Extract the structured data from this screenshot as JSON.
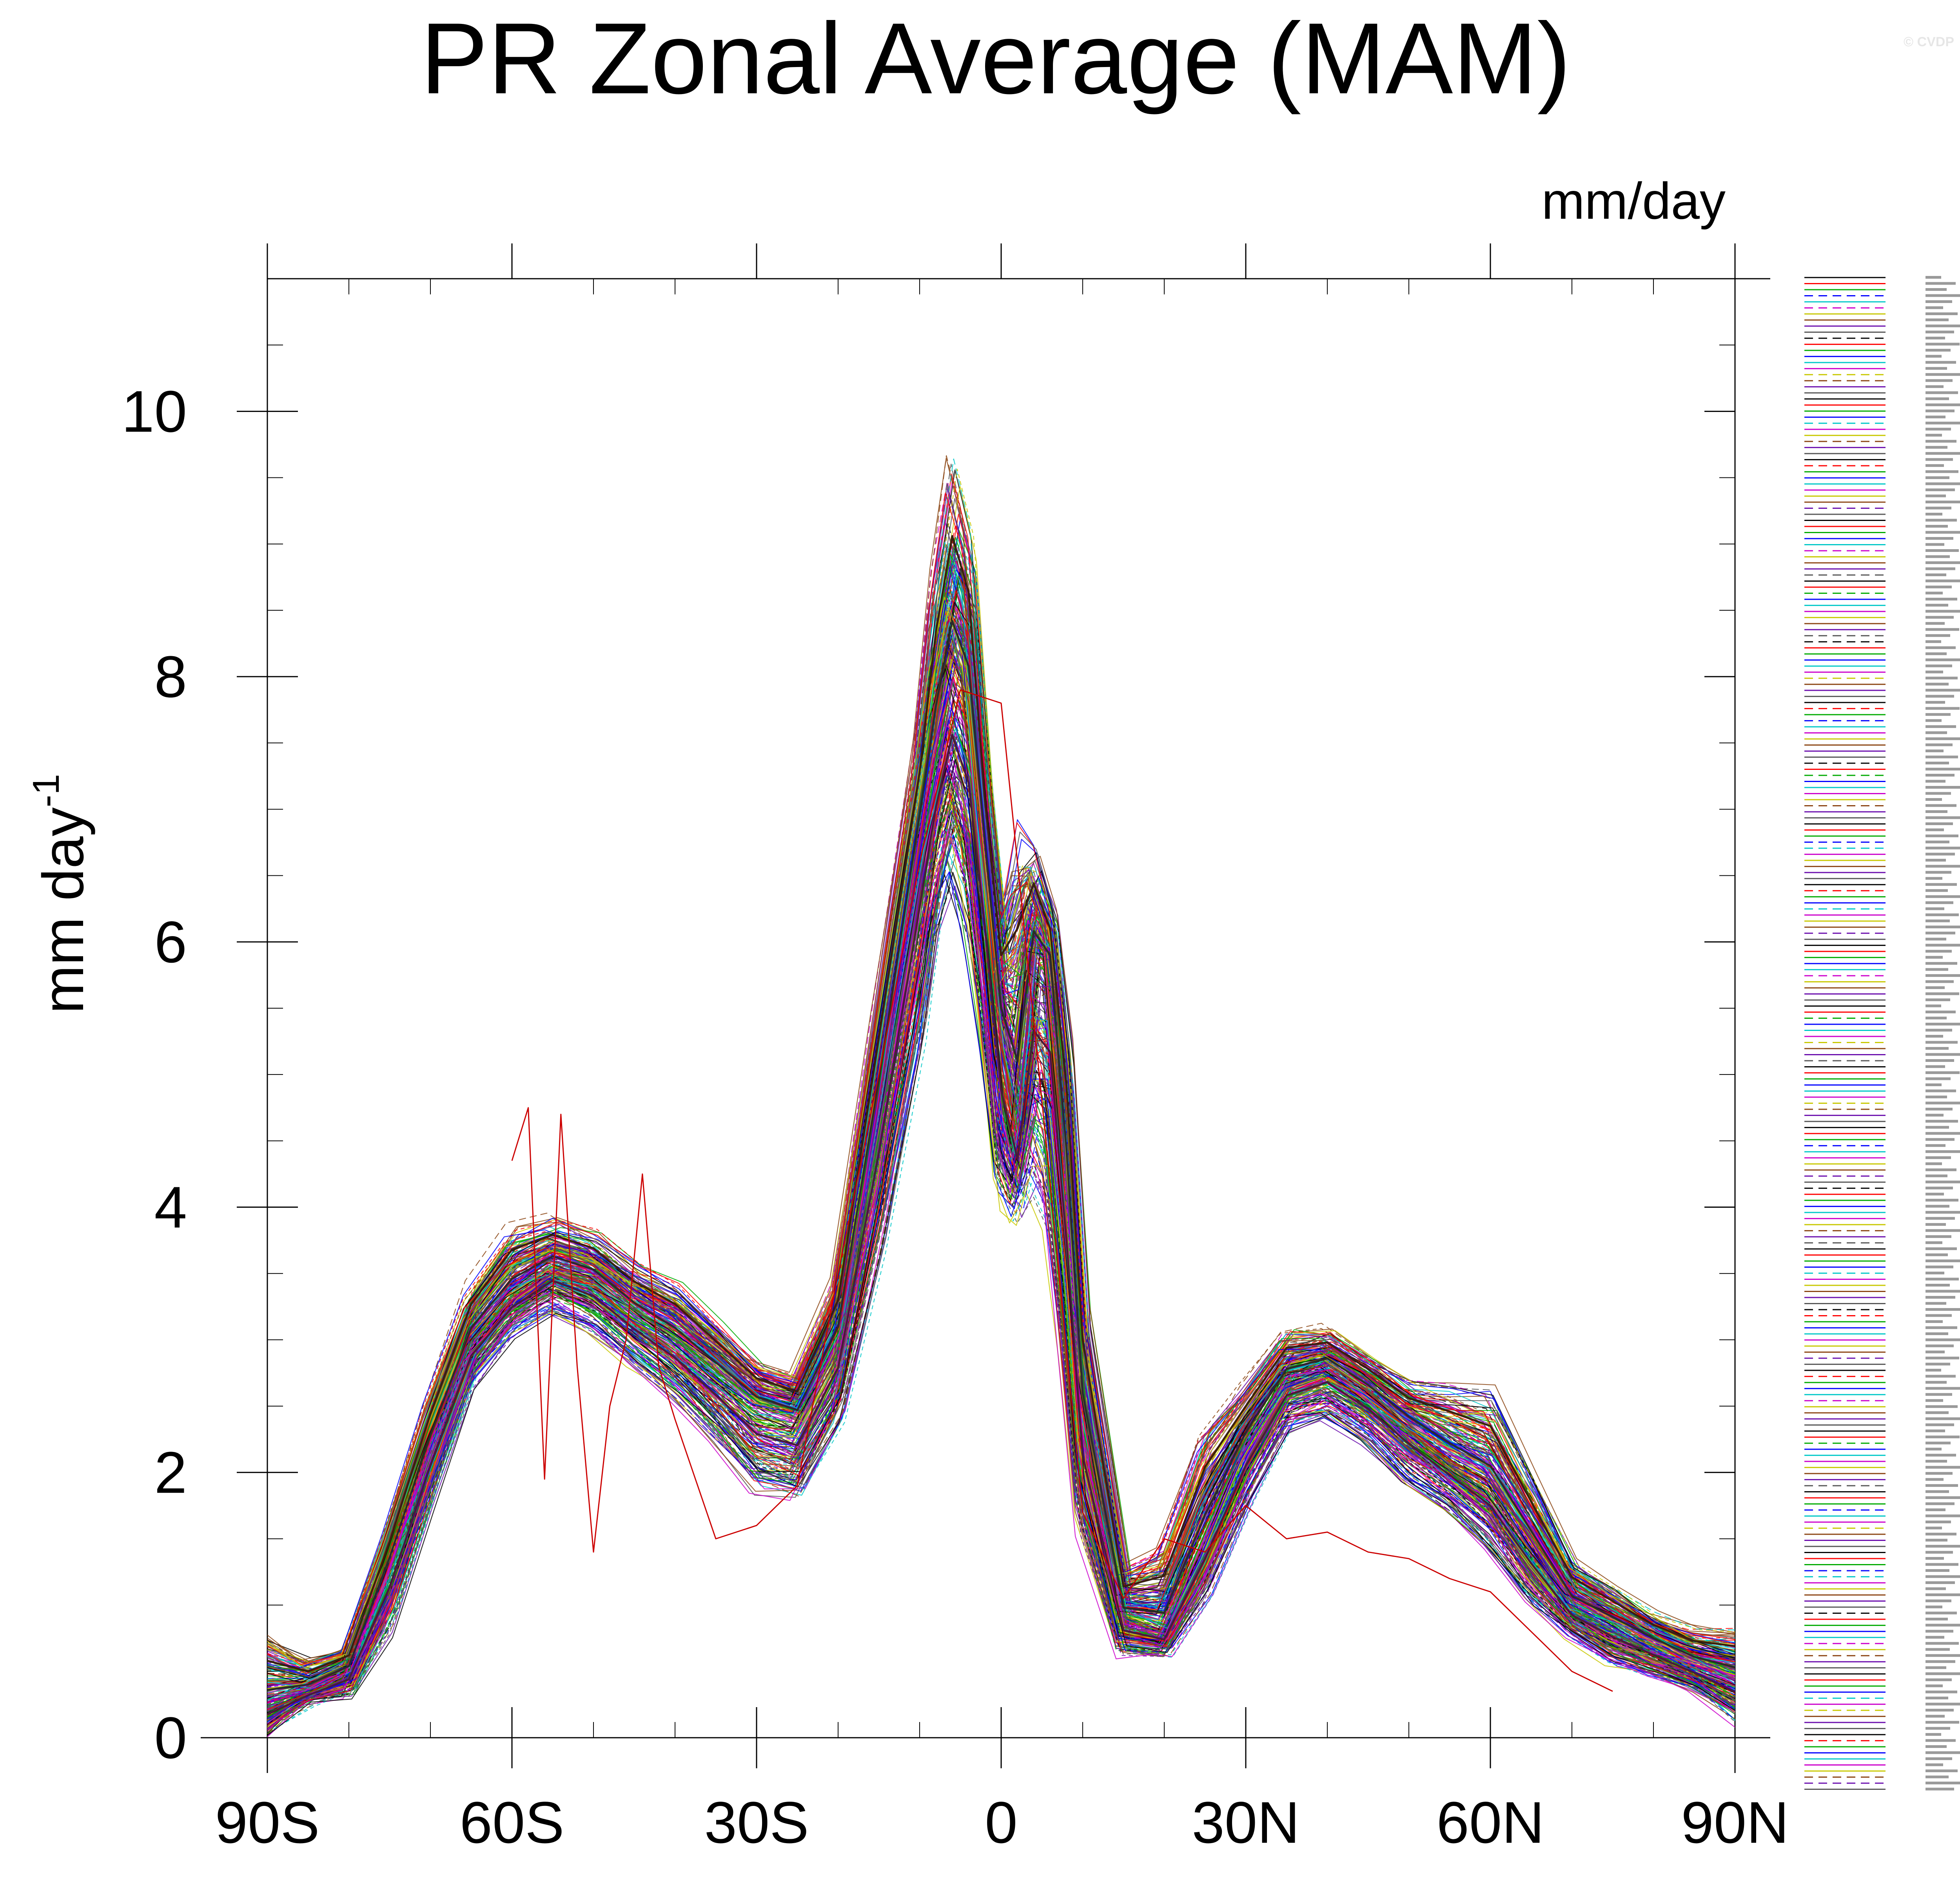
{
  "watermark": "© CVDP",
  "chart_data": {
    "type": "line",
    "title": "PR Zonal Average (MAM)",
    "units_label": "mm/day",
    "ylabel": "mm day",
    "ylabel_superscript": "-1",
    "xlim": [
      -90,
      90
    ],
    "ylim": [
      0,
      11
    ],
    "x_ticks": [
      {
        "value": -90,
        "label": "90S"
      },
      {
        "value": -60,
        "label": "60S"
      },
      {
        "value": -30,
        "label": "30S"
      },
      {
        "value": 0,
        "label": "0"
      },
      {
        "value": 30,
        "label": "30N"
      },
      {
        "value": 60,
        "label": "60N"
      },
      {
        "value": 90,
        "label": "90N"
      }
    ],
    "x_minor_step": 10,
    "y_ticks": [
      {
        "value": 0,
        "label": "0"
      },
      {
        "value": 2,
        "label": "2"
      },
      {
        "value": 4,
        "label": "4"
      },
      {
        "value": 6,
        "label": "6"
      },
      {
        "value": 8,
        "label": "8"
      },
      {
        "value": 10,
        "label": "10"
      }
    ],
    "y_minor_step": 0.5,
    "grid": false,
    "legend_position": "right",
    "legend_entry_count": 250,
    "colors": [
      "#000000",
      "#ff0000",
      "#00aa00",
      "#0000ff",
      "#00c8c8",
      "#cc00cc",
      "#c8c800",
      "#8b4513",
      "#6a0dad",
      "#555555"
    ],
    "observation_series": {
      "lat": [
        -80,
        -75,
        -70,
        -65,
        -60,
        -58,
        -56,
        -54,
        -52,
        -50,
        -48,
        -46,
        -44,
        -42,
        -40,
        -35,
        -30,
        -25,
        -20,
        -15,
        -10,
        -5,
        0,
        5,
        10,
        15,
        20,
        25,
        30,
        35,
        40,
        45,
        50,
        55,
        60,
        65,
        70,
        75,
        80,
        85
      ],
      "values": [
        null,
        null,
        null,
        null,
        4.35,
        4.75,
        1.95,
        4.7,
        2.8,
        1.4,
        2.5,
        3.0,
        4.25,
        2.8,
        2.4,
        1.5,
        1.6,
        1.9,
        3.5,
        5.0,
        6.6,
        7.9,
        7.8,
        4.8,
        1.7,
        1.05,
        1.5,
        1.4,
        1.75,
        1.5,
        1.55,
        1.4,
        1.35,
        1.2,
        1.1,
        0.8,
        0.5,
        0.35,
        null,
        null
      ]
    },
    "ensemble": {
      "member_count": 250,
      "lat": [
        -90,
        -85,
        -80,
        -75,
        -70,
        -65,
        -60,
        -55,
        -50,
        -45,
        -40,
        -35,
        -30,
        -25,
        -20,
        -15,
        -10,
        -8,
        -6,
        -4,
        -2,
        0,
        2,
        4,
        6,
        8,
        10,
        15,
        20,
        25,
        30,
        35,
        40,
        45,
        50,
        55,
        60,
        65,
        70,
        75,
        80,
        85,
        90
      ],
      "mean": [
        0.25,
        0.35,
        0.5,
        1.3,
        2.2,
        3.0,
        3.35,
        3.55,
        3.45,
        3.2,
        3.0,
        2.75,
        2.5,
        2.4,
        3.0,
        4.8,
        6.8,
        7.5,
        8.1,
        7.8,
        6.6,
        5.3,
        4.6,
        5.9,
        5.8,
        4.2,
        2.4,
        0.9,
        0.8,
        1.5,
        2.2,
        2.7,
        2.8,
        2.6,
        2.35,
        2.1,
        1.9,
        1.45,
        1.0,
        0.85,
        0.7,
        0.55,
        0.45
      ],
      "min": [
        0.0,
        0.25,
        0.3,
        0.75,
        1.7,
        2.6,
        3.0,
        3.2,
        3.05,
        2.8,
        2.55,
        2.2,
        1.8,
        1.75,
        2.3,
        3.5,
        5.0,
        5.9,
        6.3,
        5.8,
        5.0,
        3.9,
        3.8,
        4.0,
        3.7,
        2.7,
        1.5,
        0.6,
        0.6,
        1.0,
        1.7,
        2.3,
        2.4,
        2.2,
        1.9,
        1.7,
        1.4,
        1.0,
        0.75,
        0.55,
        0.45,
        0.35,
        0.1
      ],
      "max": [
        0.8,
        0.6,
        0.7,
        1.6,
        2.6,
        3.45,
        3.9,
        3.95,
        3.85,
        3.6,
        3.45,
        3.15,
        2.85,
        2.75,
        3.5,
        5.6,
        7.6,
        8.9,
        9.7,
        9.2,
        7.4,
        6.3,
        7.1,
        6.8,
        6.3,
        5.4,
        3.4,
        1.3,
        1.5,
        2.4,
        2.7,
        3.1,
        3.1,
        2.9,
        2.7,
        2.7,
        2.65,
        2.0,
        1.35,
        1.15,
        0.95,
        0.85,
        0.85
      ]
    }
  }
}
